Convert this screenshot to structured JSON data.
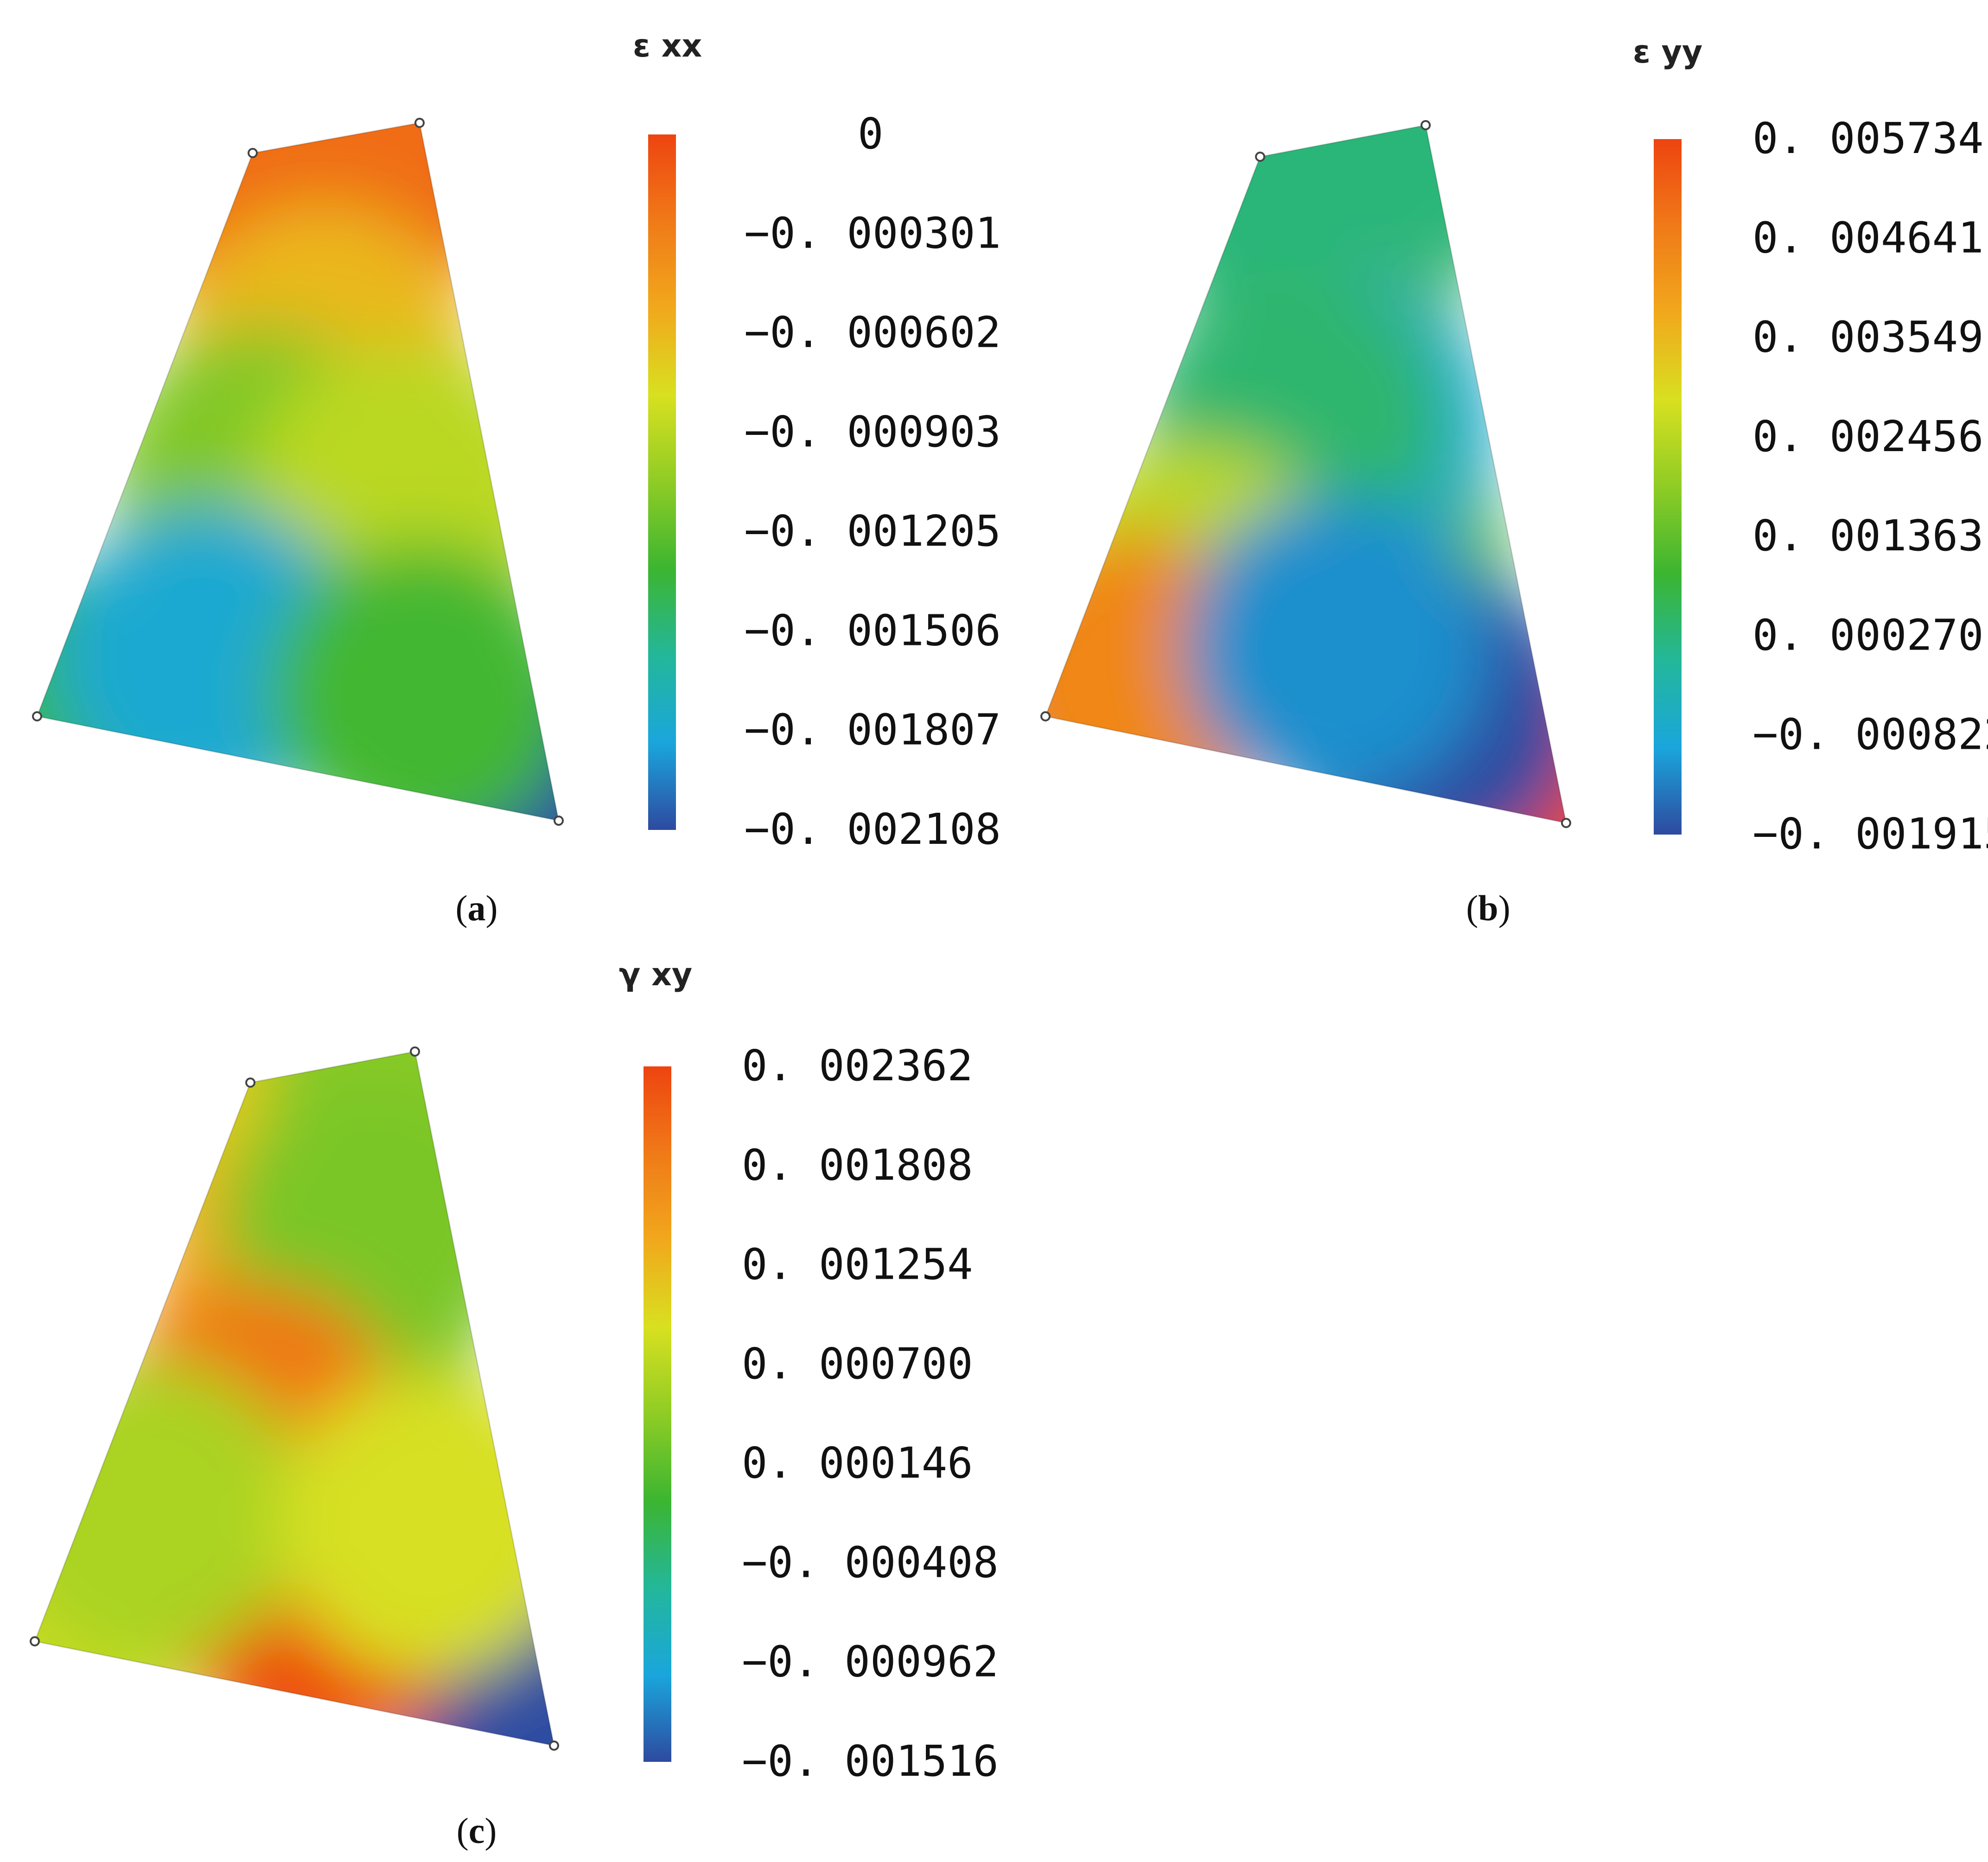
{
  "chart_data": [
    {
      "type": "heatmap",
      "panel": "a",
      "title": "ε xx",
      "caption_letter": "a",
      "colorbar_ticks": [
        "0",
        "−0. 000301",
        "−0. 000602",
        "−0. 000903",
        "−0. 001205",
        "−0. 001506",
        "−0. 001807",
        "−0. 002108"
      ],
      "range": [
        -0.002108,
        0
      ],
      "colormap": [
        "#2e4aa0",
        "#1aa6dc",
        "#23b79a",
        "#3cb531",
        "#8fcc25",
        "#d8e020",
        "#f1a81c",
        "#f07a18",
        "#ee4410"
      ],
      "corner_values": [
        -0.0003,
        0.0,
        -0.0021,
        -0.0014
      ],
      "samples": [
        {
          "u": 0.5,
          "v": 0.08,
          "value": -0.0002
        },
        {
          "u": 0.5,
          "v": 0.35,
          "value": -0.0006
        },
        {
          "u": 0.35,
          "v": 0.55,
          "value": -0.0011
        },
        {
          "u": 0.75,
          "v": 0.55,
          "value": -0.0009
        },
        {
          "u": 0.3,
          "v": 0.85,
          "value": -0.0018
        },
        {
          "u": 0.75,
          "v": 0.85,
          "value": -0.0013
        }
      ]
    },
    {
      "type": "heatmap",
      "panel": "b",
      "title": "ε yy",
      "caption_letter": "b",
      "colorbar_ticks": [
        "0. 005734",
        "0. 004641",
        "0. 003549",
        "0. 002456",
        "0. 001363",
        "0. 000270",
        "−0. 000822",
        "−0. 001915"
      ],
      "range": [
        -0.001915,
        0.005734
      ],
      "colormap": [
        "#2e4aa0",
        "#1aa6dc",
        "#23b79a",
        "#3cb531",
        "#8fcc25",
        "#d8e020",
        "#f1a81c",
        "#f07a18",
        "#ee4410"
      ],
      "corner_values": [
        0.0003,
        0.0003,
        0.0057,
        -0.0006
      ],
      "samples": [
        {
          "u": 0.55,
          "v": 0.45,
          "value": -0.0008
        },
        {
          "u": 0.4,
          "v": 0.45,
          "value": 0.0004
        },
        {
          "u": 0.22,
          "v": 0.75,
          "value": 0.0025
        },
        {
          "u": 0.15,
          "v": 0.92,
          "value": 0.0045
        },
        {
          "u": 0.75,
          "v": 0.88,
          "value": -0.0019
        },
        {
          "u": 0.55,
          "v": 0.8,
          "value": -0.0012
        }
      ]
    },
    {
      "type": "heatmap",
      "panel": "c",
      "title": "γ xy",
      "caption_letter": "c",
      "colorbar_ticks": [
        "0. 002362",
        "0. 001808",
        "0. 001254",
        "0. 000700",
        "0. 000146",
        "−0. 000408",
        "−0. 000962",
        "−0. 001516"
      ],
      "range": [
        -0.001516,
        0.002362
      ],
      "colormap": [
        "#2e4aa0",
        "#1aa6dc",
        "#23b79a",
        "#3cb531",
        "#8fcc25",
        "#d8e020",
        "#f1a81c",
        "#f07a18",
        "#ee4410"
      ],
      "corner_values": [
        0.0011,
        0.0004,
        -0.0015,
        0.0008
      ],
      "samples": [
        {
          "u": 0.45,
          "v": 0.35,
          "value": 0.0014
        },
        {
          "u": 0.7,
          "v": 0.25,
          "value": 0.0003
        },
        {
          "u": 0.35,
          "v": 0.6,
          "value": 0.0019
        },
        {
          "u": 0.55,
          "v": 0.85,
          "value": 0.0023
        },
        {
          "u": 0.15,
          "v": 0.75,
          "value": 0.0006
        },
        {
          "u": 0.8,
          "v": 0.7,
          "value": 0.0009
        }
      ]
    }
  ]
}
